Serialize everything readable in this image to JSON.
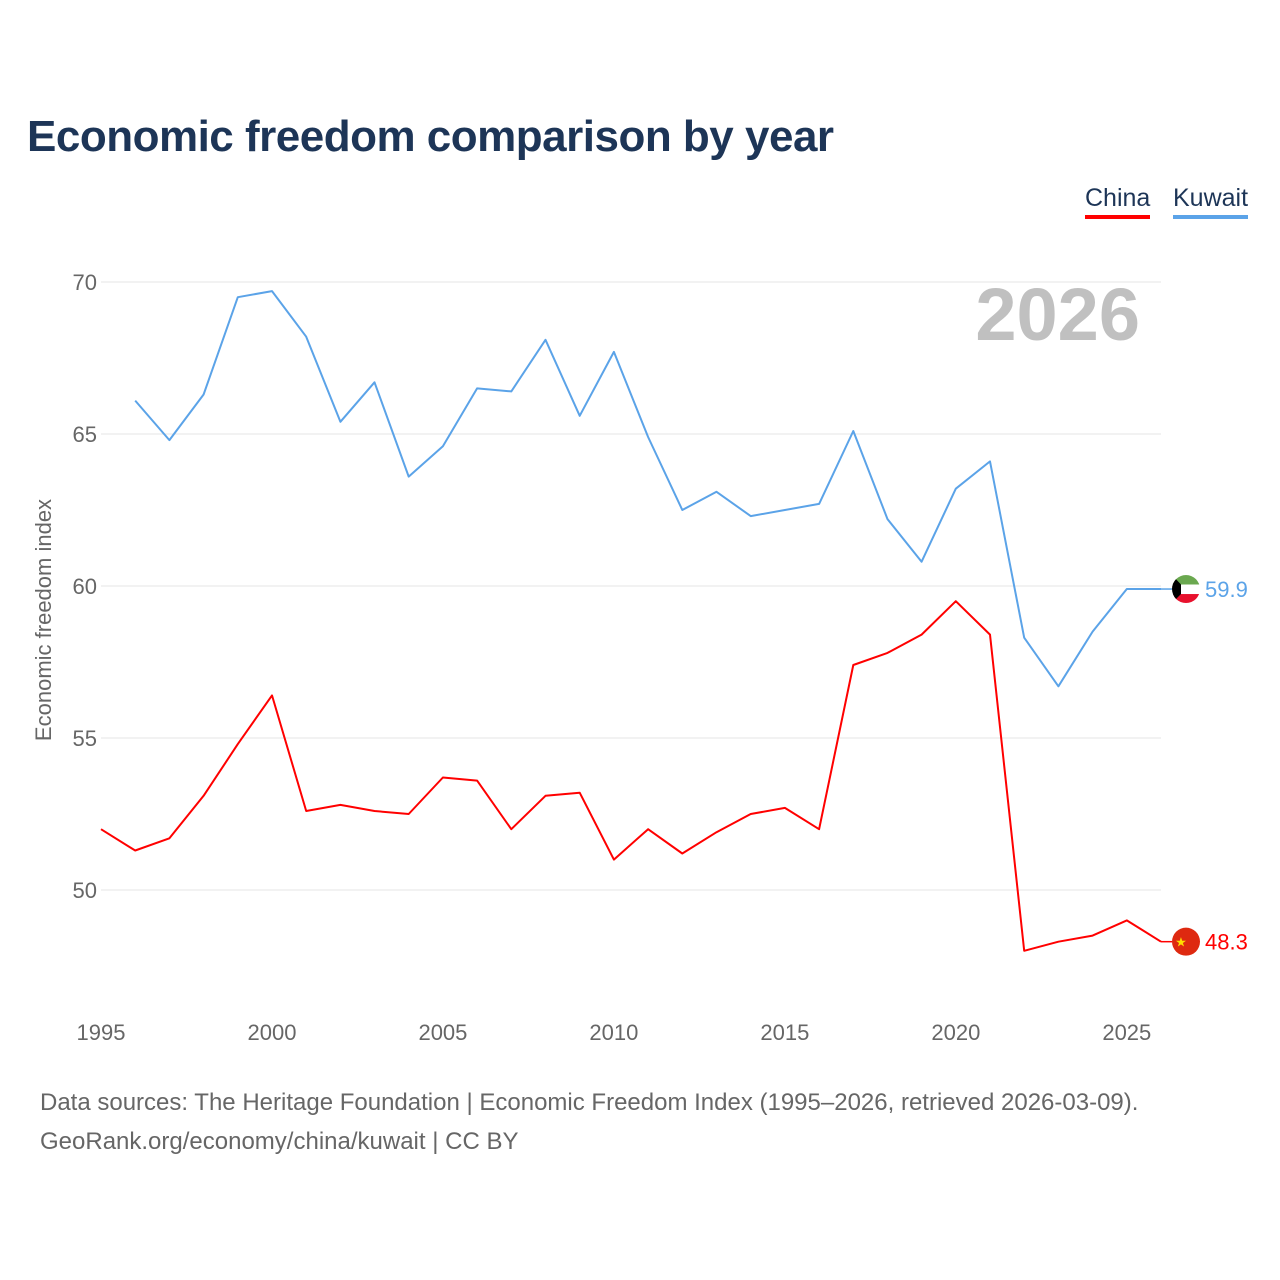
{
  "chart_data": {
    "type": "line",
    "title": "Economic freedom comparison by year",
    "ylabel": "Economic freedom index",
    "xlabel": "",
    "ylim": [
      46.5,
      72
    ],
    "xlim": [
      1995,
      2026
    ],
    "yticks": [
      50,
      55,
      60,
      65,
      70
    ],
    "xticks": [
      1995,
      2000,
      2005,
      2010,
      2015,
      2020,
      2025
    ],
    "grid": true,
    "legend_position": "top-right",
    "year_label": "2026",
    "series": [
      {
        "name": "China",
        "color": "#ff0000",
        "end_label": "48.3",
        "x": [
          1995,
          1996,
          1997,
          1998,
          1999,
          2000,
          2001,
          2002,
          2003,
          2004,
          2005,
          2006,
          2007,
          2008,
          2009,
          2010,
          2011,
          2012,
          2013,
          2014,
          2015,
          2016,
          2017,
          2018,
          2019,
          2020,
          2021,
          2022,
          2023,
          2024,
          2025,
          2026
        ],
        "values": [
          52.0,
          51.3,
          51.7,
          53.1,
          54.8,
          56.4,
          52.6,
          52.8,
          52.6,
          52.5,
          53.7,
          53.6,
          52.0,
          53.1,
          53.2,
          51.0,
          52.0,
          51.2,
          51.9,
          52.5,
          52.7,
          52.0,
          57.4,
          57.8,
          58.4,
          59.5,
          58.4,
          48.0,
          48.3,
          48.5,
          49.0,
          48.3
        ]
      },
      {
        "name": "Kuwait",
        "color": "#5ba3e8",
        "end_label": "59.9",
        "x": [
          1996,
          1997,
          1998,
          1999,
          2000,
          2001,
          2002,
          2003,
          2004,
          2005,
          2006,
          2007,
          2008,
          2009,
          2010,
          2011,
          2012,
          2013,
          2014,
          2015,
          2016,
          2017,
          2018,
          2019,
          2020,
          2021,
          2022,
          2023,
          2024,
          2025,
          2026
        ],
        "values": [
          66.1,
          64.8,
          66.3,
          69.5,
          69.7,
          68.2,
          65.4,
          66.7,
          63.6,
          64.6,
          66.5,
          66.4,
          68.1,
          65.6,
          67.7,
          64.9,
          62.5,
          63.1,
          62.3,
          62.5,
          62.7,
          65.1,
          62.2,
          60.8,
          63.2,
          64.1,
          58.3,
          56.7,
          58.5,
          59.9,
          59.9
        ]
      }
    ]
  },
  "footer": {
    "line1": "Data sources: The Heritage Foundation | Economic Freedom Index (1995–2026, retrieved 2026-03-09).",
    "line2": "GeoRank.org/economy/china/kuwait | CC BY"
  }
}
